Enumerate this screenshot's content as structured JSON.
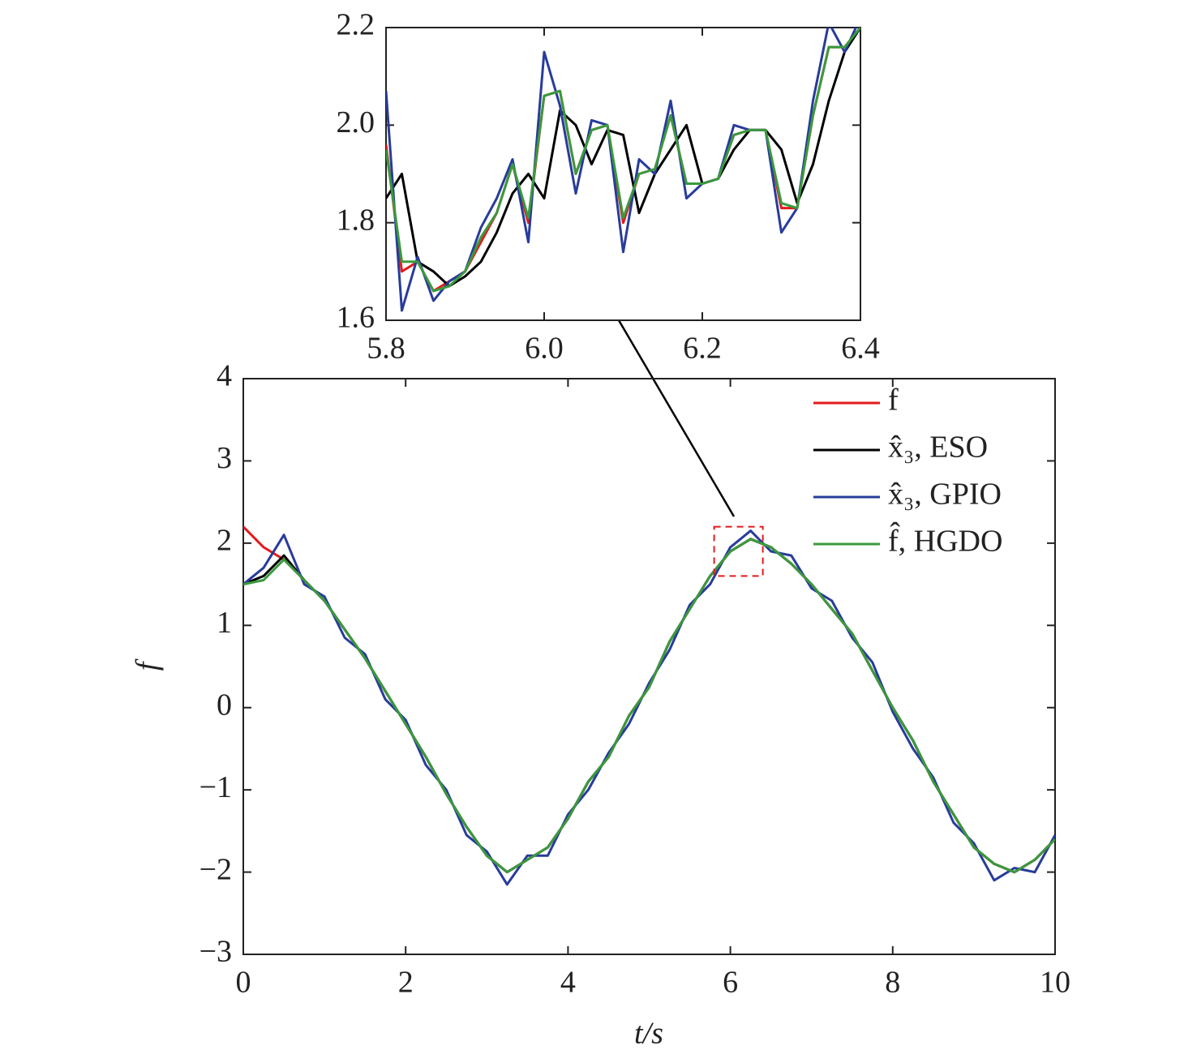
{
  "chart_data": [
    {
      "type": "line",
      "xlabel": "t/s",
      "ylabel": "f",
      "xlim": [
        0,
        10
      ],
      "xticks": [
        0,
        2,
        4,
        6,
        8,
        10
      ],
      "ylim": [
        -3,
        4
      ],
      "yticks": [
        {
          "value": -3,
          "label": "−3"
        },
        {
          "value": -2,
          "label": "−2"
        },
        {
          "value": -1,
          "label": "−1"
        },
        0,
        1,
        2,
        3,
        4
      ],
      "legend": "upper right",
      "x": [
        0,
        0.25,
        0.5,
        0.75,
        1,
        1.25,
        1.5,
        1.75,
        2,
        2.25,
        2.5,
        2.75,
        3,
        3.25,
        3.5,
        3.75,
        4,
        4.25,
        4.5,
        4.75,
        5,
        5.25,
        5.5,
        5.75,
        6,
        6.25,
        6.5,
        6.75,
        7,
        7.25,
        7.5,
        7.75,
        8,
        8.25,
        8.5,
        8.75,
        9,
        9.25,
        9.5,
        9.75,
        10
      ],
      "series": [
        {
          "name": "f",
          "color": "#e31a1c",
          "values": [
            2.2,
            1.95,
            1.8,
            1.55,
            1.3,
            0.95,
            0.6,
            0.2,
            -0.2,
            -0.6,
            -1.05,
            -1.45,
            -1.8,
            -2.0,
            -1.85,
            -1.7,
            -1.35,
            -0.9,
            -0.6,
            -0.1,
            0.25,
            0.8,
            1.2,
            1.6,
            1.9,
            2.05,
            1.95,
            1.75,
            1.5,
            1.2,
            0.9,
            0.45,
            0.0,
            -0.4,
            -0.9,
            -1.3,
            -1.7,
            -1.9,
            -2.0,
            -1.85,
            -1.6
          ]
        },
        {
          "name": "x̂₃, ESO",
          "color": "#000000",
          "values": [
            1.5,
            1.6,
            1.85,
            1.55,
            1.3,
            0.95,
            0.6,
            0.2,
            -0.2,
            -0.6,
            -1.05,
            -1.45,
            -1.8,
            -2.0,
            -1.85,
            -1.7,
            -1.35,
            -0.9,
            -0.6,
            -0.1,
            0.25,
            0.8,
            1.2,
            1.6,
            1.9,
            2.05,
            1.95,
            1.75,
            1.5,
            1.2,
            0.9,
            0.45,
            0.0,
            -0.4,
            -0.9,
            -1.3,
            -1.7,
            -1.9,
            -2.0,
            -1.85,
            -1.6
          ]
        },
        {
          "name": "x̂₃, GPIO",
          "color": "#283c9a",
          "values": [
            1.5,
            1.7,
            2.1,
            1.5,
            1.35,
            0.85,
            0.65,
            0.1,
            -0.15,
            -0.7,
            -1.0,
            -1.55,
            -1.75,
            -2.15,
            -1.8,
            -1.8,
            -1.3,
            -1.0,
            -0.55,
            -0.2,
            0.3,
            0.7,
            1.25,
            1.5,
            1.95,
            2.15,
            1.9,
            1.85,
            1.45,
            1.3,
            0.85,
            0.55,
            -0.05,
            -0.5,
            -0.85,
            -1.4,
            -1.65,
            -2.1,
            -1.95,
            -2.0,
            -1.55
          ]
        },
        {
          "name": "f̂, HGDO",
          "color": "#3a9a3c",
          "values": [
            1.5,
            1.55,
            1.8,
            1.55,
            1.3,
            0.95,
            0.6,
            0.2,
            -0.2,
            -0.6,
            -1.05,
            -1.45,
            -1.8,
            -2.0,
            -1.85,
            -1.7,
            -1.35,
            -0.9,
            -0.6,
            -0.1,
            0.25,
            0.8,
            1.2,
            1.6,
            1.9,
            2.05,
            1.95,
            1.75,
            1.5,
            1.2,
            0.9,
            0.45,
            0.0,
            -0.4,
            -0.9,
            -1.3,
            -1.7,
            -1.9,
            -2.0,
            -1.85,
            -1.6
          ]
        }
      ]
    },
    {
      "type": "line",
      "xlim": [
        5.8,
        6.4
      ],
      "xticks": [
        5.8,
        {
          "value": 6,
          "label": "6.0"
        },
        6.2,
        6.4
      ],
      "ylim": [
        1.6,
        2.2
      ],
      "yticks": [
        1.6,
        1.8,
        {
          "value": 2,
          "label": "2.0"
        },
        2.2
      ],
      "x": [
        5.8,
        5.82,
        5.84,
        5.86,
        5.88,
        5.9,
        5.92,
        5.94,
        5.96,
        5.98,
        6.0,
        6.02,
        6.04,
        6.06,
        6.08,
        6.1,
        6.12,
        6.14,
        6.16,
        6.18,
        6.2,
        6.22,
        6.24,
        6.26,
        6.28,
        6.3,
        6.32,
        6.34,
        6.36,
        6.38,
        6.4
      ],
      "series": [
        {
          "name": "f",
          "color": "#e31a1c",
          "values": [
            1.96,
            1.7,
            1.72,
            1.66,
            1.68,
            1.7,
            1.76,
            1.82,
            1.92,
            1.8,
            2.06,
            2.07,
            1.9,
            1.99,
            2.0,
            1.8,
            1.9,
            1.91,
            2.02,
            1.88,
            1.88,
            1.89,
            1.98,
            1.99,
            1.99,
            1.83,
            1.83,
            2.02,
            2.16,
            2.16,
            2.2
          ]
        },
        {
          "name": "x̂₃, ESO",
          "color": "#000000",
          "values": [
            1.85,
            1.9,
            1.72,
            1.7,
            1.67,
            1.69,
            1.72,
            1.78,
            1.86,
            1.9,
            1.85,
            2.03,
            2.0,
            1.92,
            1.99,
            1.98,
            1.82,
            1.9,
            1.95,
            2.0,
            1.88,
            1.89,
            1.95,
            1.99,
            1.99,
            1.95,
            1.84,
            1.92,
            2.05,
            2.15,
            2.2
          ]
        },
        {
          "name": "x̂₃, GPIO",
          "color": "#283c9a",
          "values": [
            2.07,
            1.62,
            1.73,
            1.64,
            1.68,
            1.7,
            1.79,
            1.85,
            1.93,
            1.76,
            2.15,
            2.04,
            1.86,
            2.01,
            2.0,
            1.74,
            1.93,
            1.9,
            2.05,
            1.85,
            1.88,
            1.89,
            2.0,
            1.99,
            1.99,
            1.78,
            1.83,
            2.05,
            2.21,
            2.15,
            2.22
          ]
        },
        {
          "name": "f̂, HGDO",
          "color": "#3a9a3c",
          "values": [
            1.95,
            1.72,
            1.72,
            1.66,
            1.67,
            1.7,
            1.77,
            1.82,
            1.92,
            1.81,
            2.06,
            2.07,
            1.9,
            1.99,
            2.0,
            1.81,
            1.9,
            1.91,
            2.02,
            1.88,
            1.88,
            1.89,
            1.98,
            1.99,
            1.99,
            1.84,
            1.83,
            2.02,
            2.16,
            2.16,
            2.2
          ]
        }
      ]
    }
  ]
}
